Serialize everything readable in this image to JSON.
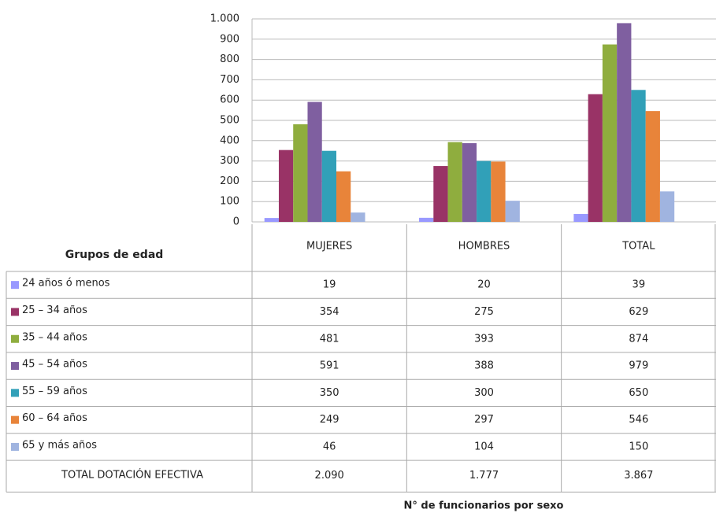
{
  "chart_data": {
    "type": "bar",
    "categories": [
      "MUJERES",
      "HOMBRES",
      "TOTAL"
    ],
    "series": [
      {
        "name": "24 años ó menos",
        "color": "#9999ff",
        "values": [
          19,
          20,
          39
        ]
      },
      {
        "name": "25 – 34 años",
        "color": "#993366",
        "values": [
          354,
          275,
          629
        ]
      },
      {
        "name": "35 – 44 años",
        "color": "#8fad3e",
        "values": [
          481,
          393,
          874
        ]
      },
      {
        "name": "45 – 54 años",
        "color": "#7f5fa0",
        "values": [
          591,
          388,
          979
        ]
      },
      {
        "name": "55 – 59 años",
        "color": "#31a0b8",
        "values": [
          350,
          300,
          650
        ]
      },
      {
        "name": "60 – 64 años",
        "color": "#e8843a",
        "values": [
          249,
          297,
          546
        ]
      },
      {
        "name": "65 y más años",
        "color": "#a0b4e0",
        "values": [
          46,
          104,
          150
        ]
      }
    ],
    "ylim": [
      0,
      1000
    ],
    "yticks": [
      0,
      100,
      200,
      300,
      400,
      500,
      600,
      700,
      800,
      900,
      {
        "value": 1000,
        "label": "1.000"
      }
    ],
    "grid": true,
    "table_header": "Grupos de edad",
    "total_label": "TOTAL DOTACIÓN EFECTIVA",
    "totals": [
      "2.090",
      "1.777",
      "3.867"
    ],
    "x_label": "N° de funcionarios por sexo"
  }
}
